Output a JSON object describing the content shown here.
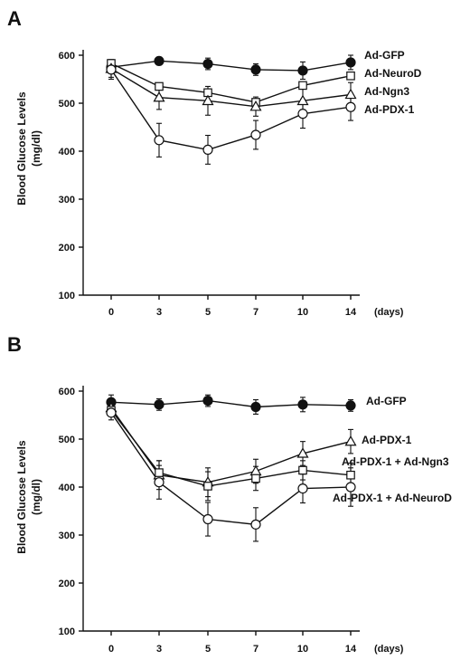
{
  "chart_data": [
    {
      "panel": "A",
      "type": "line",
      "ylabel_line1": "Blood Glucose Levels",
      "ylabel_line2": "(mg/dl)",
      "x_unit": "(days)",
      "x_ticks": [
        "0",
        "3",
        "5",
        "7",
        "10",
        "14"
      ],
      "y_ticks": [
        "100",
        "200",
        "300",
        "400",
        "500",
        "600"
      ],
      "ylim": [
        100,
        600
      ],
      "series": [
        {
          "name": "Ad-GFP",
          "marker": "filled-circle",
          "values": [
            575,
            588,
            582,
            570,
            568,
            585
          ],
          "errors": [
            12,
            8,
            12,
            12,
            18,
            15
          ]
        },
        {
          "name": "Ad-NeuroD",
          "marker": "open-square",
          "values": [
            583,
            535,
            522,
            502,
            537,
            557
          ],
          "errors": [
            8,
            5,
            5,
            5,
            5,
            5
          ]
        },
        {
          "name": "Ad-Ngn3",
          "marker": "open-triangle",
          "values": [
            572,
            512,
            505,
            493,
            505,
            518
          ],
          "errors": [
            18,
            25,
            30,
            20,
            25,
            25
          ]
        },
        {
          "name": "Ad-PDX-1",
          "marker": "open-circle",
          "values": [
            570,
            423,
            403,
            434,
            478,
            492
          ],
          "errors": [
            20,
            35,
            30,
            30,
            30,
            28
          ]
        }
      ]
    },
    {
      "panel": "B",
      "type": "line",
      "ylabel_line1": "Blood Glucose Levels",
      "ylabel_line2": "(mg/dl)",
      "x_unit": "(days)",
      "x_ticks": [
        "0",
        "3",
        "5",
        "7",
        "10",
        "14"
      ],
      "y_ticks": [
        "100",
        "200",
        "300",
        "400",
        "500",
        "600"
      ],
      "ylim": [
        100,
        600
      ],
      "series": [
        {
          "name": "Ad-GFP",
          "marker": "filled-circle",
          "values": [
            577,
            572,
            580,
            567,
            572,
            570
          ],
          "errors": [
            15,
            12,
            12,
            15,
            15,
            12
          ]
        },
        {
          "name": "Ad-PDX-1",
          "marker": "open-triangle",
          "values": [
            565,
            425,
            410,
            433,
            470,
            495
          ],
          "errors": [
            15,
            30,
            30,
            25,
            25,
            25
          ]
        },
        {
          "name": "Ad-PDX-1 + Ad-Ngn3",
          "marker": "open-square",
          "values": [
            560,
            430,
            402,
            418,
            435,
            425
          ],
          "errors": [
            12,
            25,
            30,
            25,
            20,
            25
          ]
        },
        {
          "name": "Ad-PDX-1 + Ad-NeuroD",
          "marker": "open-circle",
          "values": [
            555,
            410,
            333,
            322,
            397,
            400
          ],
          "errors": [
            15,
            35,
            35,
            35,
            30,
            40
          ]
        }
      ]
    }
  ]
}
